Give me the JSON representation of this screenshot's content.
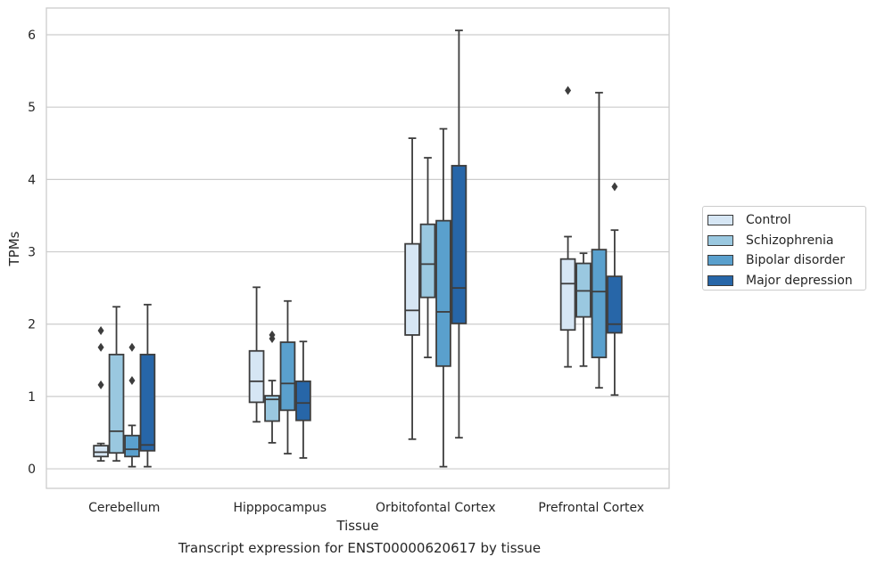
{
  "caption": "Transcript expression for ENST00000620617 by tissue",
  "chart_data": {
    "type": "box",
    "xlabel": "Tissue",
    "ylabel": "TPMs",
    "ylim": [
      -0.27,
      6.37
    ],
    "yticks": [
      0,
      1,
      2,
      3,
      4,
      5,
      6
    ],
    "grid": "horizontal",
    "legend_position": "right",
    "categories": [
      "Cerebellum",
      "Hipppocampus",
      "Orbitofontal Cortex",
      "Prefrontal Cortex"
    ],
    "series": [
      {
        "name": "Control",
        "color": "#d6e6f4",
        "boxes": [
          {
            "whisker_low": 0.11,
            "q1": 0.17,
            "median": 0.23,
            "q3": 0.32,
            "whisker_high": 0.35,
            "outliers": [
              1.16,
              1.68,
              1.91
            ]
          },
          {
            "whisker_low": 0.65,
            "q1": 0.92,
            "median": 1.21,
            "q3": 1.63,
            "whisker_high": 2.51,
            "outliers": []
          },
          {
            "whisker_low": 0.41,
            "q1": 1.85,
            "median": 2.19,
            "q3": 3.11,
            "whisker_high": 4.57,
            "outliers": []
          },
          {
            "whisker_low": 1.41,
            "q1": 1.92,
            "median": 2.56,
            "q3": 2.9,
            "whisker_high": 3.21,
            "outliers": [
              5.23
            ]
          }
        ]
      },
      {
        "name": "Schizophrenia",
        "color": "#9ac8e0",
        "boxes": [
          {
            "whisker_low": 0.11,
            "q1": 0.22,
            "median": 0.52,
            "q3": 1.58,
            "whisker_high": 2.24,
            "outliers": []
          },
          {
            "whisker_low": 0.36,
            "q1": 0.66,
            "median": 0.96,
            "q3": 1.01,
            "whisker_high": 1.22,
            "outliers": [
              1.8,
              1.85
            ]
          },
          {
            "whisker_low": 1.54,
            "q1": 2.37,
            "median": 2.83,
            "q3": 3.38,
            "whisker_high": 4.3,
            "outliers": []
          },
          {
            "whisker_low": 1.42,
            "q1": 2.1,
            "median": 2.46,
            "q3": 2.84,
            "whisker_high": 2.98,
            "outliers": []
          }
        ]
      },
      {
        "name": "Bipolar disorder",
        "color": "#5aa0cd",
        "boxes": [
          {
            "whisker_low": 0.03,
            "q1": 0.17,
            "median": 0.27,
            "q3": 0.46,
            "whisker_high": 0.6,
            "outliers": [
              1.22,
              1.68
            ]
          },
          {
            "whisker_low": 0.21,
            "q1": 0.81,
            "median": 1.18,
            "q3": 1.75,
            "whisker_high": 2.32,
            "outliers": []
          },
          {
            "whisker_low": 0.03,
            "q1": 1.42,
            "median": 2.17,
            "q3": 3.43,
            "whisker_high": 4.7,
            "outliers": []
          },
          {
            "whisker_low": 1.12,
            "q1": 1.54,
            "median": 2.45,
            "q3": 3.03,
            "whisker_high": 5.2,
            "outliers": []
          }
        ]
      },
      {
        "name": "Major depression",
        "color": "#2766a8",
        "boxes": [
          {
            "whisker_low": 0.03,
            "q1": 0.25,
            "median": 0.33,
            "q3": 1.58,
            "whisker_high": 2.27,
            "outliers": []
          },
          {
            "whisker_low": 0.15,
            "q1": 0.67,
            "median": 0.91,
            "q3": 1.21,
            "whisker_high": 1.76,
            "outliers": []
          },
          {
            "whisker_low": 0.43,
            "q1": 2.01,
            "median": 2.5,
            "q3": 4.19,
            "whisker_high": 6.06,
            "outliers": []
          },
          {
            "whisker_low": 1.02,
            "q1": 1.88,
            "median": 2.0,
            "q3": 2.66,
            "whisker_high": 3.3,
            "outliers": [
              3.9
            ]
          }
        ]
      }
    ]
  }
}
